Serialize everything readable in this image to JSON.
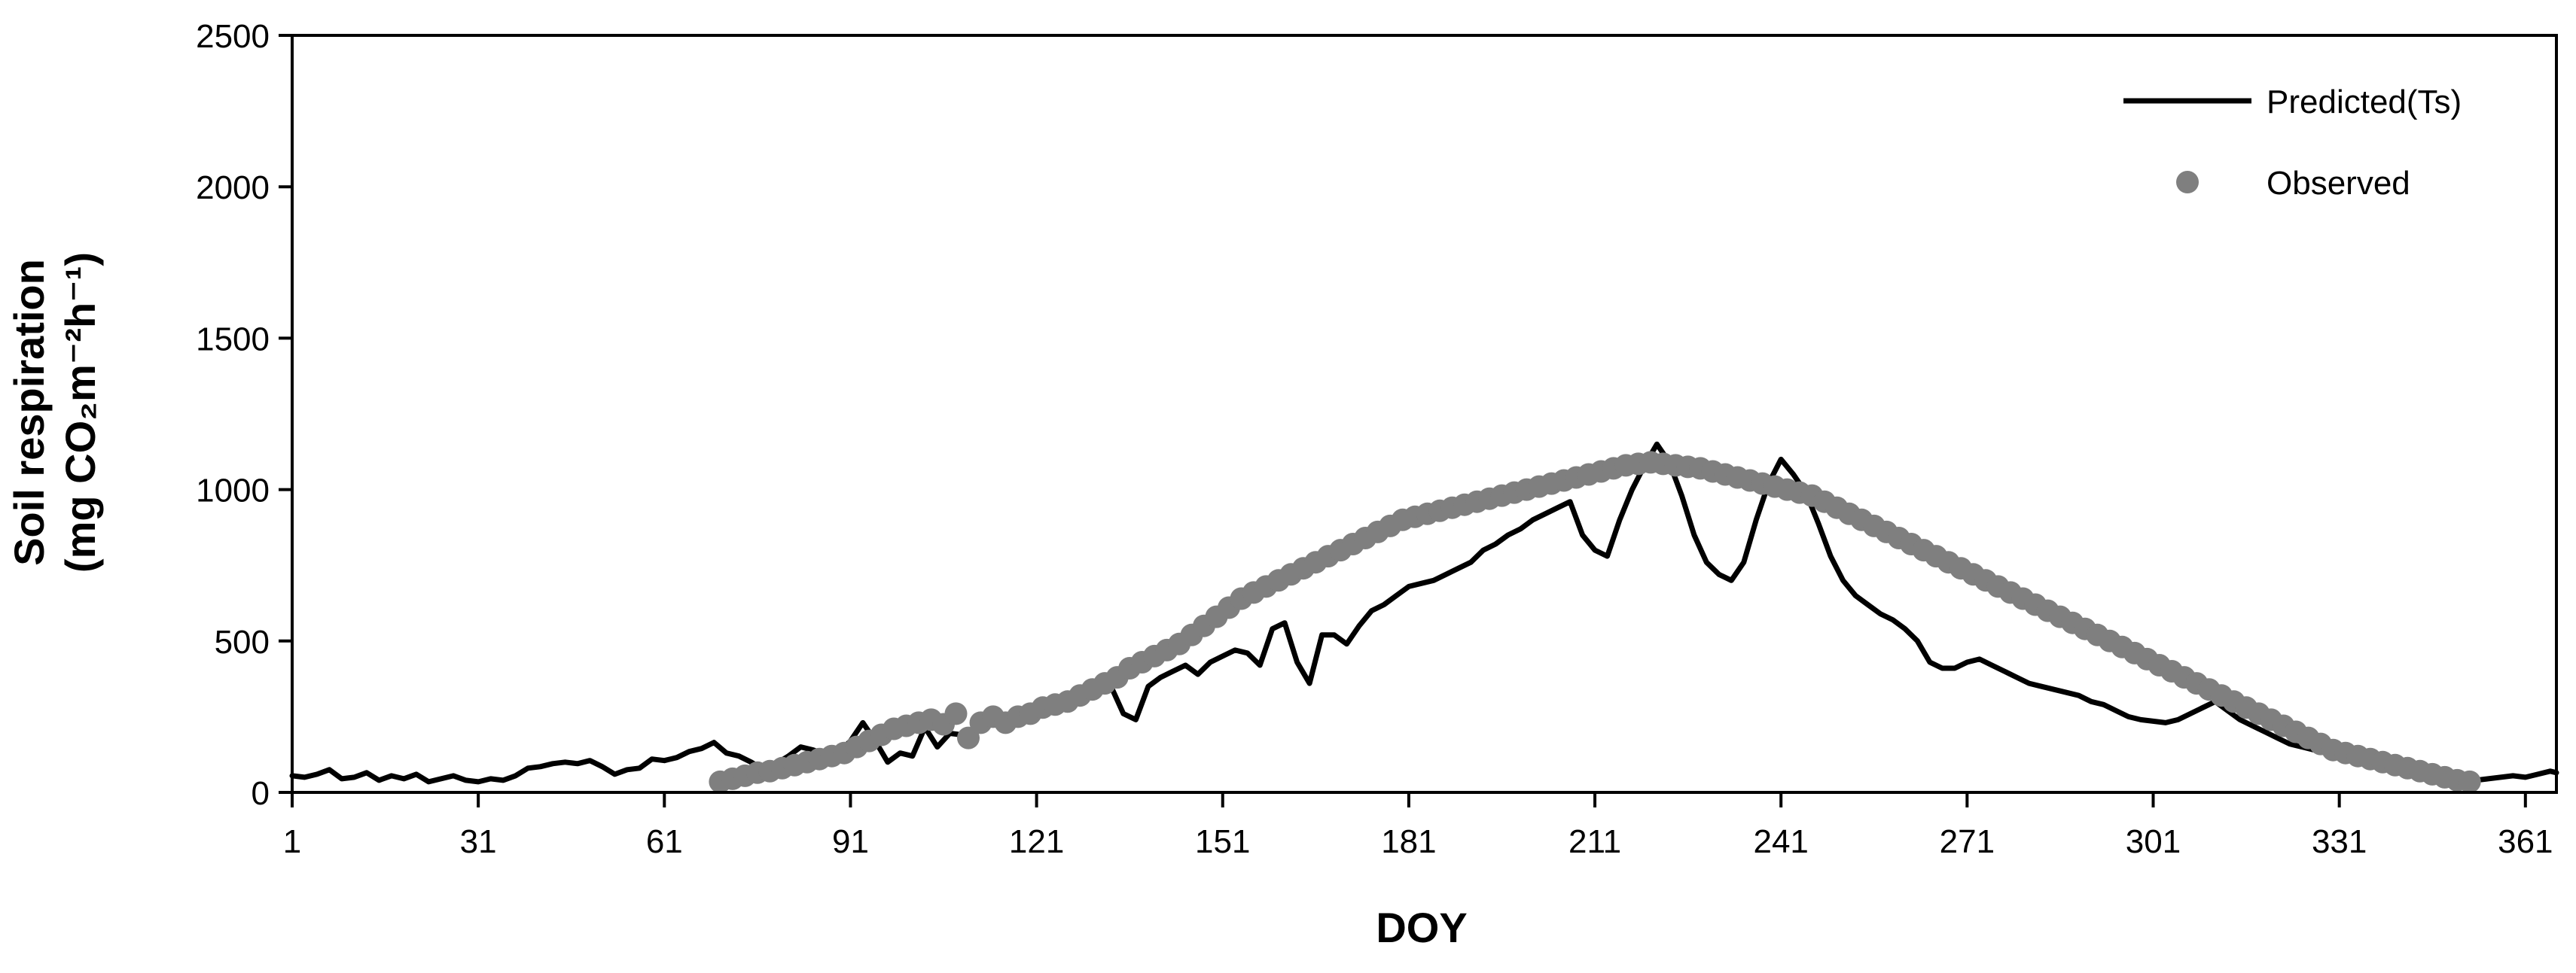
{
  "chart_data": {
    "type": "line",
    "title": "",
    "xlabel": "DOY",
    "ylabel_lines": [
      "Soil respiration",
      "(mg CO₂m⁻²h⁻¹)"
    ],
    "xlim": [
      1,
      366
    ],
    "ylim": [
      0,
      2500
    ],
    "xticks": [
      1,
      31,
      61,
      91,
      121,
      151,
      181,
      211,
      241,
      271,
      301,
      331,
      361
    ],
    "yticks": [
      0,
      500,
      1000,
      1500,
      2000,
      2500
    ],
    "grid": false,
    "legend_position": "top-right",
    "series": [
      {
        "name": "Predicted(Ts)",
        "kind": "line",
        "color": "#000000",
        "points": [
          [
            1,
            55
          ],
          [
            3,
            50
          ],
          [
            5,
            60
          ],
          [
            7,
            75
          ],
          [
            9,
            45
          ],
          [
            11,
            50
          ],
          [
            13,
            65
          ],
          [
            15,
            40
          ],
          [
            17,
            55
          ],
          [
            19,
            45
          ],
          [
            21,
            60
          ],
          [
            23,
            35
          ],
          [
            25,
            45
          ],
          [
            27,
            55
          ],
          [
            29,
            40
          ],
          [
            31,
            35
          ],
          [
            33,
            45
          ],
          [
            35,
            40
          ],
          [
            37,
            55
          ],
          [
            39,
            80
          ],
          [
            41,
            85
          ],
          [
            43,
            95
          ],
          [
            45,
            100
          ],
          [
            47,
            95
          ],
          [
            49,
            105
          ],
          [
            51,
            85
          ],
          [
            53,
            60
          ],
          [
            55,
            75
          ],
          [
            57,
            80
          ],
          [
            59,
            110
          ],
          [
            61,
            105
          ],
          [
            63,
            115
          ],
          [
            65,
            135
          ],
          [
            67,
            145
          ],
          [
            69,
            165
          ],
          [
            71,
            130
          ],
          [
            73,
            120
          ],
          [
            75,
            100
          ],
          [
            77,
            75
          ],
          [
            79,
            95
          ],
          [
            81,
            120
          ],
          [
            83,
            150
          ],
          [
            85,
            140
          ],
          [
            87,
            125
          ],
          [
            89,
            130
          ],
          [
            91,
            170
          ],
          [
            93,
            230
          ],
          [
            95,
            170
          ],
          [
            97,
            100
          ],
          [
            99,
            130
          ],
          [
            101,
            120
          ],
          [
            103,
            215
          ],
          [
            105,
            150
          ],
          [
            107,
            195
          ],
          [
            109,
            190
          ],
          [
            111,
            200
          ],
          [
            113,
            220
          ],
          [
            115,
            240
          ],
          [
            117,
            235
          ],
          [
            119,
            260
          ],
          [
            121,
            250
          ],
          [
            123,
            270
          ],
          [
            125,
            290
          ],
          [
            127,
            300
          ],
          [
            129,
            320
          ],
          [
            131,
            370
          ],
          [
            133,
            350
          ],
          [
            135,
            260
          ],
          [
            137,
            240
          ],
          [
            139,
            350
          ],
          [
            141,
            380
          ],
          [
            143,
            400
          ],
          [
            145,
            420
          ],
          [
            147,
            390
          ],
          [
            149,
            430
          ],
          [
            151,
            450
          ],
          [
            153,
            470
          ],
          [
            155,
            460
          ],
          [
            157,
            420
          ],
          [
            159,
            540
          ],
          [
            161,
            560
          ],
          [
            163,
            430
          ],
          [
            165,
            360
          ],
          [
            167,
            520
          ],
          [
            169,
            520
          ],
          [
            171,
            490
          ],
          [
            173,
            550
          ],
          [
            175,
            600
          ],
          [
            177,
            620
          ],
          [
            179,
            650
          ],
          [
            181,
            680
          ],
          [
            183,
            690
          ],
          [
            185,
            700
          ],
          [
            187,
            720
          ],
          [
            189,
            740
          ],
          [
            191,
            760
          ],
          [
            193,
            800
          ],
          [
            195,
            820
          ],
          [
            197,
            850
          ],
          [
            199,
            870
          ],
          [
            201,
            900
          ],
          [
            203,
            920
          ],
          [
            205,
            940
          ],
          [
            207,
            960
          ],
          [
            209,
            850
          ],
          [
            211,
            800
          ],
          [
            213,
            780
          ],
          [
            215,
            900
          ],
          [
            217,
            1000
          ],
          [
            219,
            1080
          ],
          [
            221,
            1150
          ],
          [
            223,
            1090
          ],
          [
            225,
            980
          ],
          [
            227,
            850
          ],
          [
            229,
            760
          ],
          [
            231,
            720
          ],
          [
            233,
            700
          ],
          [
            235,
            760
          ],
          [
            237,
            900
          ],
          [
            239,
            1020
          ],
          [
            241,
            1100
          ],
          [
            243,
            1050
          ],
          [
            245,
            990
          ],
          [
            247,
            890
          ],
          [
            249,
            780
          ],
          [
            251,
            700
          ],
          [
            253,
            650
          ],
          [
            255,
            620
          ],
          [
            257,
            590
          ],
          [
            259,
            570
          ],
          [
            261,
            540
          ],
          [
            263,
            500
          ],
          [
            265,
            430
          ],
          [
            267,
            410
          ],
          [
            269,
            410
          ],
          [
            271,
            430
          ],
          [
            273,
            440
          ],
          [
            275,
            420
          ],
          [
            277,
            400
          ],
          [
            279,
            380
          ],
          [
            281,
            360
          ],
          [
            283,
            350
          ],
          [
            285,
            340
          ],
          [
            287,
            330
          ],
          [
            289,
            320
          ],
          [
            291,
            300
          ],
          [
            293,
            290
          ],
          [
            295,
            270
          ],
          [
            297,
            250
          ],
          [
            299,
            240
          ],
          [
            301,
            235
          ],
          [
            303,
            230
          ],
          [
            305,
            240
          ],
          [
            307,
            260
          ],
          [
            309,
            280
          ],
          [
            311,
            300
          ],
          [
            313,
            270
          ],
          [
            315,
            240
          ],
          [
            317,
            220
          ],
          [
            319,
            200
          ],
          [
            321,
            180
          ],
          [
            323,
            160
          ],
          [
            325,
            150
          ],
          [
            327,
            140
          ],
          [
            329,
            130
          ],
          [
            331,
            120
          ],
          [
            333,
            110
          ],
          [
            335,
            100
          ],
          [
            337,
            95
          ],
          [
            339,
            90
          ],
          [
            341,
            80
          ],
          [
            343,
            70
          ],
          [
            345,
            60
          ],
          [
            347,
            55
          ],
          [
            349,
            50
          ],
          [
            351,
            45
          ],
          [
            353,
            40
          ],
          [
            355,
            45
          ],
          [
            357,
            50
          ],
          [
            359,
            55
          ],
          [
            361,
            50
          ],
          [
            363,
            60
          ],
          [
            365,
            70
          ],
          [
            366,
            65
          ]
        ]
      },
      {
        "name": "Observed",
        "kind": "scatter",
        "color": "#7f7f7f",
        "points": [
          [
            70,
            35
          ],
          [
            72,
            45
          ],
          [
            74,
            55
          ],
          [
            76,
            65
          ],
          [
            78,
            70
          ],
          [
            80,
            80
          ],
          [
            82,
            90
          ],
          [
            84,
            100
          ],
          [
            86,
            110
          ],
          [
            88,
            120
          ],
          [
            90,
            130
          ],
          [
            92,
            150
          ],
          [
            94,
            170
          ],
          [
            96,
            190
          ],
          [
            98,
            210
          ],
          [
            100,
            220
          ],
          [
            102,
            230
          ],
          [
            104,
            240
          ],
          [
            106,
            225
          ],
          [
            108,
            260
          ],
          [
            110,
            180
          ],
          [
            112,
            230
          ],
          [
            114,
            250
          ],
          [
            116,
            230
          ],
          [
            118,
            250
          ],
          [
            120,
            260
          ],
          [
            122,
            280
          ],
          [
            124,
            290
          ],
          [
            126,
            300
          ],
          [
            128,
            320
          ],
          [
            130,
            340
          ],
          [
            132,
            360
          ],
          [
            134,
            380
          ],
          [
            136,
            410
          ],
          [
            138,
            430
          ],
          [
            140,
            450
          ],
          [
            142,
            470
          ],
          [
            144,
            490
          ],
          [
            146,
            520
          ],
          [
            148,
            550
          ],
          [
            150,
            580
          ],
          [
            152,
            610
          ],
          [
            154,
            640
          ],
          [
            156,
            660
          ],
          [
            158,
            680
          ],
          [
            160,
            700
          ],
          [
            162,
            720
          ],
          [
            164,
            740
          ],
          [
            166,
            760
          ],
          [
            168,
            780
          ],
          [
            170,
            800
          ],
          [
            172,
            820
          ],
          [
            174,
            840
          ],
          [
            176,
            860
          ],
          [
            178,
            880
          ],
          [
            180,
            900
          ],
          [
            182,
            910
          ],
          [
            184,
            920
          ],
          [
            186,
            930
          ],
          [
            188,
            940
          ],
          [
            190,
            950
          ],
          [
            192,
            960
          ],
          [
            194,
            970
          ],
          [
            196,
            980
          ],
          [
            198,
            990
          ],
          [
            200,
            1000
          ],
          [
            202,
            1010
          ],
          [
            204,
            1020
          ],
          [
            206,
            1030
          ],
          [
            208,
            1040
          ],
          [
            210,
            1050
          ],
          [
            212,
            1060
          ],
          [
            214,
            1070
          ],
          [
            216,
            1080
          ],
          [
            218,
            1085
          ],
          [
            220,
            1090
          ],
          [
            222,
            1085
          ],
          [
            224,
            1080
          ],
          [
            226,
            1075
          ],
          [
            228,
            1070
          ],
          [
            230,
            1060
          ],
          [
            232,
            1050
          ],
          [
            234,
            1040
          ],
          [
            236,
            1030
          ],
          [
            238,
            1020
          ],
          [
            240,
            1010
          ],
          [
            242,
            1000
          ],
          [
            244,
            990
          ],
          [
            246,
            980
          ],
          [
            248,
            960
          ],
          [
            250,
            940
          ],
          [
            252,
            920
          ],
          [
            254,
            900
          ],
          [
            256,
            880
          ],
          [
            258,
            860
          ],
          [
            260,
            840
          ],
          [
            262,
            820
          ],
          [
            264,
            800
          ],
          [
            266,
            780
          ],
          [
            268,
            760
          ],
          [
            270,
            740
          ],
          [
            272,
            720
          ],
          [
            274,
            700
          ],
          [
            276,
            680
          ],
          [
            278,
            660
          ],
          [
            280,
            640
          ],
          [
            282,
            620
          ],
          [
            284,
            600
          ],
          [
            286,
            580
          ],
          [
            288,
            560
          ],
          [
            290,
            540
          ],
          [
            292,
            520
          ],
          [
            294,
            500
          ],
          [
            296,
            480
          ],
          [
            298,
            460
          ],
          [
            300,
            440
          ],
          [
            302,
            420
          ],
          [
            304,
            400
          ],
          [
            306,
            380
          ],
          [
            308,
            360
          ],
          [
            310,
            340
          ],
          [
            312,
            320
          ],
          [
            314,
            300
          ],
          [
            316,
            280
          ],
          [
            318,
            260
          ],
          [
            320,
            240
          ],
          [
            322,
            220
          ],
          [
            324,
            200
          ],
          [
            326,
            180
          ],
          [
            328,
            160
          ],
          [
            330,
            140
          ],
          [
            332,
            130
          ],
          [
            334,
            120
          ],
          [
            336,
            110
          ],
          [
            338,
            100
          ],
          [
            340,
            90
          ],
          [
            342,
            80
          ],
          [
            344,
            70
          ],
          [
            346,
            60
          ],
          [
            348,
            50
          ],
          [
            350,
            40
          ],
          [
            352,
            35
          ]
        ]
      }
    ]
  }
}
